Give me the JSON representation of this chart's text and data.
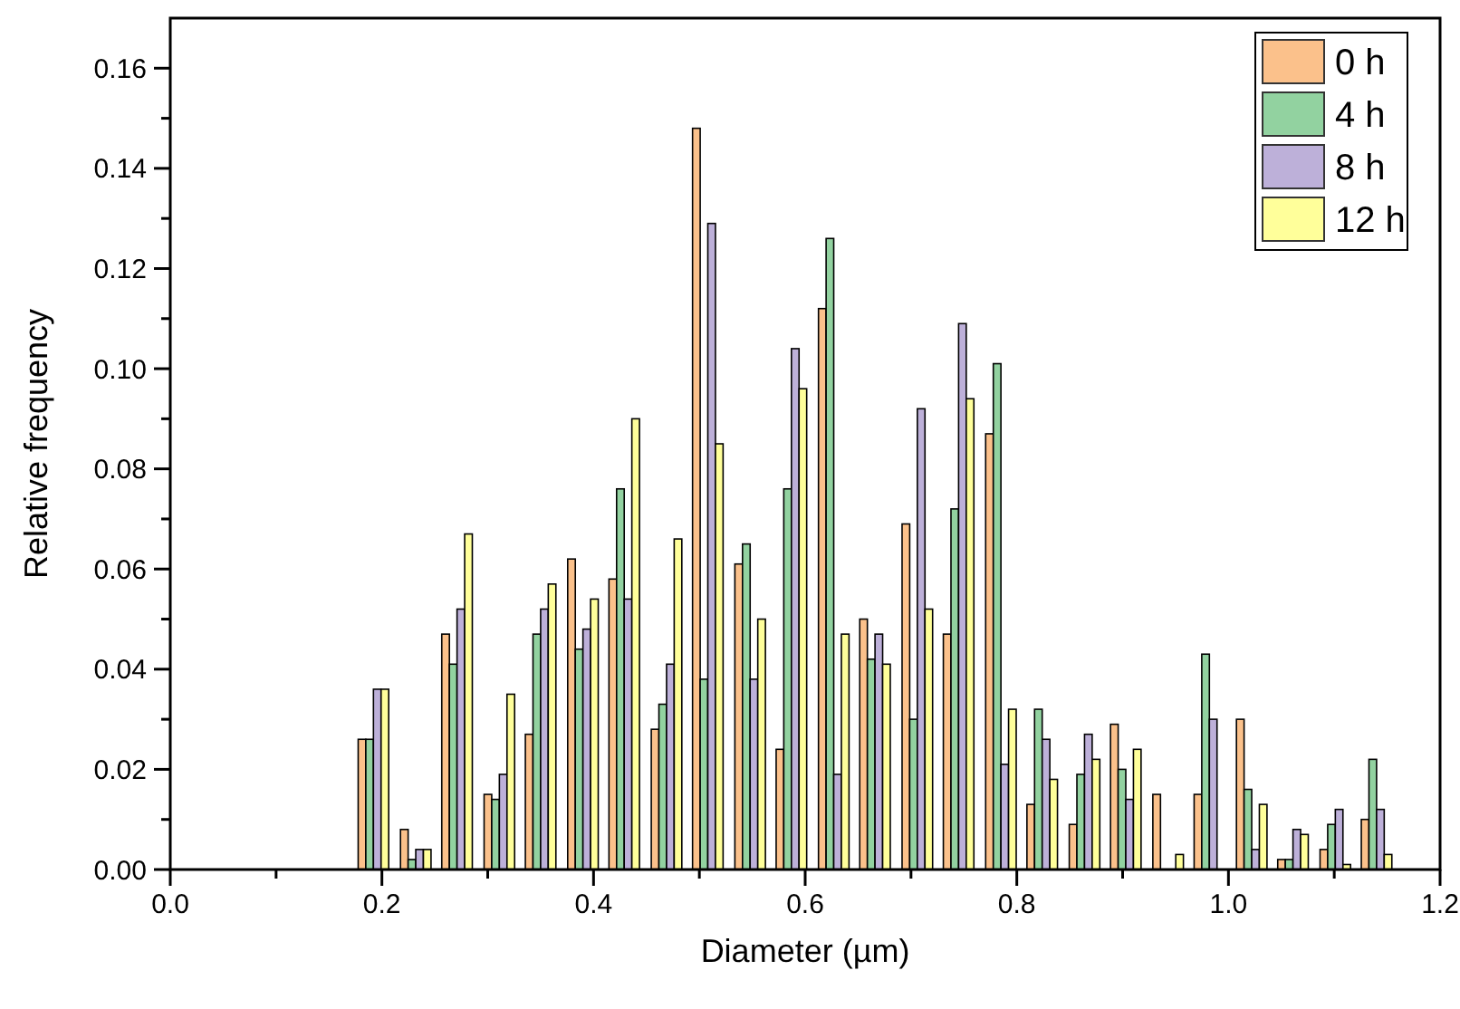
{
  "chart_data": {
    "type": "bar",
    "xlabel": "Diameter (µm)",
    "ylabel": "Relative frequency",
    "x": [
      0.192,
      0.232,
      0.271,
      0.311,
      0.35,
      0.39,
      0.429,
      0.469,
      0.508,
      0.548,
      0.587,
      0.627,
      0.666,
      0.706,
      0.745,
      0.785,
      0.824,
      0.864,
      0.903,
      0.943,
      0.982,
      1.022,
      1.061,
      1.101,
      1.14
    ],
    "series": [
      {
        "name": "0 h",
        "color": "#fbc18b",
        "values": [
          0.026,
          0.008,
          0.047,
          0.015,
          0.027,
          0.062,
          0.058,
          0.028,
          0.148,
          0.061,
          0.024,
          0.112,
          0.05,
          0.069,
          0.047,
          0.087,
          0.013,
          0.009,
          0.029,
          0.015,
          0.015,
          0.03,
          0.002,
          0.004,
          0.01
        ]
      },
      {
        "name": "4 h",
        "color": "#92d2a0",
        "values": [
          0.026,
          0.002,
          0.041,
          0.014,
          0.047,
          0.044,
          0.076,
          0.033,
          0.038,
          0.065,
          0.076,
          0.126,
          0.042,
          0.03,
          0.072,
          0.101,
          0.032,
          0.019,
          0.02,
          0,
          0.043,
          0.016,
          0.002,
          0.009,
          0.022
        ]
      },
      {
        "name": "8 h",
        "color": "#bdb0d9",
        "values": [
          0.036,
          0.004,
          0.052,
          0.019,
          0.052,
          0.048,
          0.054,
          0.041,
          0.129,
          0.038,
          0.104,
          0.019,
          0.047,
          0.092,
          0.109,
          0.021,
          0.026,
          0.027,
          0.014,
          0,
          0.03,
          0.004,
          0.008,
          0.012,
          0.012
        ]
      },
      {
        "name": "12 h",
        "color": "#ffff9a",
        "values": [
          0.036,
          0.004,
          0.067,
          0.035,
          0.057,
          0.054,
          0.09,
          0.066,
          0.085,
          0.05,
          0.096,
          0.047,
          0.041,
          0.052,
          0.094,
          0.032,
          0.018,
          0.022,
          0.024,
          0.003,
          0,
          0.013,
          0.007,
          0.001,
          0.003
        ]
      }
    ],
    "xlim": [
      0,
      1.2
    ],
    "xticks": [
      {
        "value": 0,
        "label": "0.0"
      },
      {
        "value": 0.1,
        "label": null
      },
      0.2,
      {
        "value": 0.3,
        "label": null
      },
      0.4,
      {
        "value": 0.5,
        "label": null
      },
      0.6,
      {
        "value": 0.7,
        "label": null
      },
      0.8,
      {
        "value": 0.9,
        "label": null
      },
      {
        "value": 1,
        "label": "1.0"
      },
      {
        "value": 1.1,
        "label": null
      },
      1.2
    ],
    "ylim": [
      0,
      0.17
    ],
    "yticks": [
      {
        "value": 0,
        "label": "0.00"
      },
      {
        "value": 0.01,
        "label": null
      },
      0.02,
      {
        "value": 0.03,
        "label": null
      },
      0.04,
      {
        "value": 0.05,
        "label": null
      },
      0.06,
      {
        "value": 0.07,
        "label": null
      },
      0.08,
      {
        "value": 0.09,
        "label": null
      },
      {
        "value": 0.1,
        "label": "0.10"
      },
      {
        "value": 0.11,
        "label": null
      },
      0.12,
      {
        "value": 0.13,
        "label": null
      },
      0.14,
      {
        "value": 0.15,
        "label": null
      },
      0.16
    ],
    "legend": "top right",
    "grid": false
  }
}
